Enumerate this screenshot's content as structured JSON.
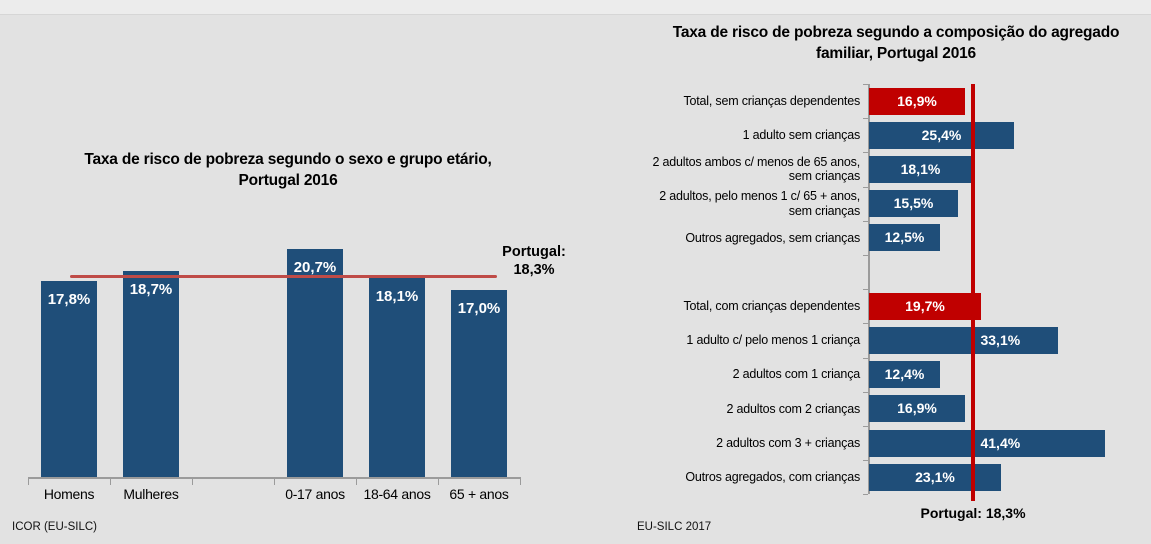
{
  "page": {
    "background": "#e2e2e2",
    "top_strip_color": "#ececec"
  },
  "chart_data": [
    {
      "type": "bar",
      "title": "Taxa de risco de pobreza segundo o sexo e grupo etário,\nPortugal 2016",
      "source": "ICOR (EU-SILC)",
      "categories": [
        "Homens",
        "Mulheres",
        "0-17 anos",
        "18-64 anos",
        "65 + anos"
      ],
      "values": [
        17.8,
        18.7,
        20.7,
        18.1,
        17.0
      ],
      "value_labels": [
        "17,8%",
        "18,7%",
        "20,7%",
        "18,1%",
        "17,0%"
      ],
      "gap_after_index": 1,
      "ylim": [
        0,
        21.5
      ],
      "grid": false,
      "legend": "none",
      "bar_color": "#1f4e79",
      "value_label_color": "#ffffff",
      "axis_color": "#9b9b9b",
      "reference_line": {
        "label": "Portugal:\n18,3%",
        "value": 18.3,
        "color": "#bf4b47"
      }
    },
    {
      "type": "horizontal-bar",
      "title": "Taxa de risco de pobreza segundo a composição do agregado\nfamiliar, Portugal 2016",
      "source": "EU-SILC 2017",
      "items": [
        {
          "label": "Total, sem crianças dependentes",
          "value": 16.9,
          "value_label": "16,9%",
          "is_total": true
        },
        {
          "label": "1 adulto sem crianças",
          "value": 25.4,
          "value_label": "25,4%"
        },
        {
          "label": "2 adultos ambos c/ menos de 65 anos,\nsem crianças",
          "value": 18.1,
          "value_label": "18,1%"
        },
        {
          "label": "2 adultos, pelo menos 1 c/ 65 + anos,\nsem crianças",
          "value": 15.5,
          "value_label": "15,5%"
        },
        {
          "label": "Outros agregados, sem crianças",
          "value": 12.5,
          "value_label": "12,5%"
        },
        {
          "label": "Total, com crianças dependentes",
          "value": 19.7,
          "value_label": "19,7%",
          "is_total": true
        },
        {
          "label": "1 adulto c/ pelo menos 1 criança",
          "value": 33.1,
          "value_label": "33,1%",
          "value_label_after_line": true
        },
        {
          "label": "2 adultos com 1 criança",
          "value": 12.4,
          "value_label": "12,4%"
        },
        {
          "label": "2 adultos com 2 crianças",
          "value": 16.9,
          "value_label": "16,9%"
        },
        {
          "label": "2 adultos com 3 + crianças",
          "value": 41.4,
          "value_label": "41,4%",
          "value_label_after_line": true
        },
        {
          "label": "Outros agregados, com crianças",
          "value": 23.1,
          "value_label": "23,1%"
        }
      ],
      "gap_after_index": 4,
      "xlim": [
        0,
        49
      ],
      "grid": false,
      "legend": "none",
      "bar_color": "#1f4e79",
      "total_bar_color": "#c00000",
      "value_label_color": "#ffffff",
      "axis_color": "#9b9b9b",
      "reference_line": {
        "label": "Portugal: 18,3%",
        "value": 18.3,
        "color": "#c00000"
      }
    }
  ]
}
